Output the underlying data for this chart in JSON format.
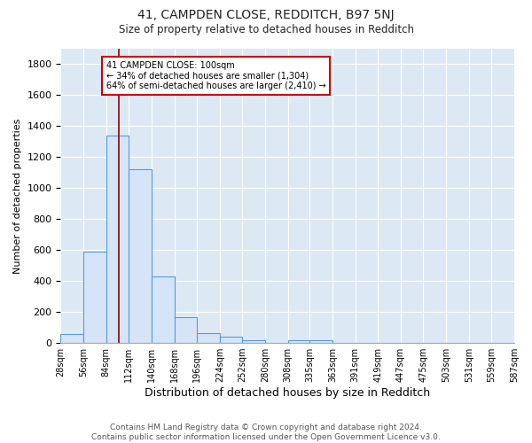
{
  "title": "41, CAMPDEN CLOSE, REDDITCH, B97 5NJ",
  "subtitle": "Size of property relative to detached houses in Redditch",
  "xlabel": "Distribution of detached houses by size in Redditch",
  "ylabel": "Number of detached properties",
  "bin_edges": [
    28,
    56,
    84,
    112,
    140,
    168,
    196,
    224,
    252,
    280,
    308,
    335,
    363,
    391,
    419,
    447,
    475,
    503,
    531,
    559,
    587
  ],
  "bar_heights": [
    60,
    590,
    1340,
    1120,
    430,
    165,
    65,
    40,
    20,
    0,
    20,
    20,
    0,
    0,
    0,
    0,
    0,
    0,
    0,
    0
  ],
  "bar_color": "#d6e4f7",
  "bar_edge_color": "#5b9bd5",
  "bar_edge_width": 0.8,
  "grid_color": "#ffffff",
  "background_color": "#dce9f5",
  "vline_x": 100,
  "vline_color": "#8b0000",
  "annotation_text": "41 CAMPDEN CLOSE: 100sqm\n← 34% of detached houses are smaller (1,304)\n64% of semi-detached houses are larger (2,410) →",
  "annotation_box_color": "#ffffff",
  "annotation_box_edge_color": "#cc0000",
  "ylim": [
    0,
    1900
  ],
  "yticks": [
    0,
    200,
    400,
    600,
    800,
    1000,
    1200,
    1400,
    1600,
    1800
  ],
  "footer_text": "Contains HM Land Registry data © Crown copyright and database right 2024.\nContains public sector information licensed under the Open Government Licence v3.0.",
  "tick_labels": [
    "28sqm",
    "56sqm",
    "84sqm",
    "112sqm",
    "140sqm",
    "168sqm",
    "196sqm",
    "224sqm",
    "252sqm",
    "280sqm",
    "308sqm",
    "335sqm",
    "363sqm",
    "391sqm",
    "419sqm",
    "447sqm",
    "475sqm",
    "503sqm",
    "531sqm",
    "559sqm",
    "587sqm"
  ],
  "fig_bg": "#ffffff"
}
